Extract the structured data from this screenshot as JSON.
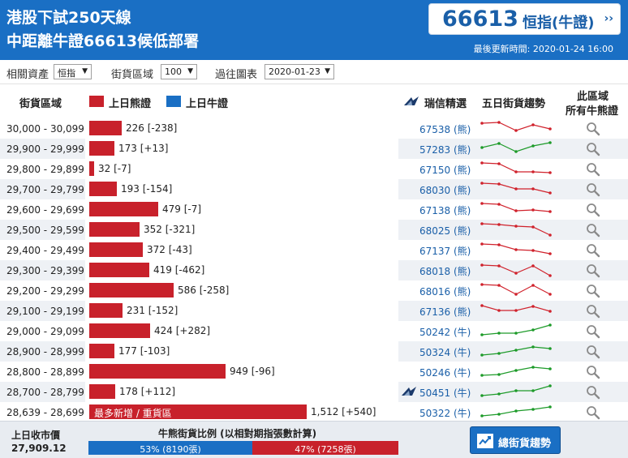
{
  "header": {
    "headline_line1": "港股下試250天線",
    "headline_line2": "中距離牛證66613候低部署",
    "code": "66613",
    "code_label": "恒指(牛證)",
    "arrow": "››",
    "update_time": "最後更新時間: 2020-01-24 16:00"
  },
  "filters": {
    "asset_label": "相關資產",
    "asset_value": "恒指",
    "zone_label": "街貨區域",
    "zone_value": "100",
    "chart_label": "過往圖表",
    "chart_value": "2020-01-23"
  },
  "columns": {
    "zone": "街貨區域",
    "bear_legend": "上日熊證",
    "bull_legend": "上日牛證",
    "picks": "瑞信精選",
    "trend": "五日街貨趨勢",
    "all_line1": "此區域",
    "all_line2": "所有牛熊證"
  },
  "colors": {
    "bear": "#c8212b",
    "bull": "#1a6fc4",
    "header_bg": "#1a6fc4",
    "trend_down": "#d0222c",
    "trend_up": "#1e9b2a"
  },
  "rows": [
    {
      "range": "30,000 - 30,099",
      "value": 226,
      "change": "[-238]",
      "label": "226 [-238]",
      "code": "67538 (熊)",
      "trend": "down",
      "spark": [
        6,
        5,
        15,
        8,
        13
      ],
      "logo": false
    },
    {
      "range": "29,900 - 29,999",
      "value": 173,
      "change": "[+13]",
      "label": "173 [+13]",
      "code": "57283 (熊)",
      "trend": "up",
      "spark": [
        11,
        6,
        16,
        9,
        5
      ],
      "logo": false
    },
    {
      "range": "29,800 - 29,899",
      "value": 32,
      "change": "[-7]",
      "label": "32 [-7]",
      "code": "67150 (熊)",
      "trend": "down",
      "spark": [
        5,
        6,
        16,
        16,
        17
      ],
      "logo": false
    },
    {
      "range": "29,700 - 29,799",
      "value": 193,
      "change": "[-154]",
      "label": "193 [-154]",
      "code": "68030 (熊)",
      "trend": "down",
      "spark": [
        5,
        6,
        12,
        12,
        17
      ],
      "logo": false
    },
    {
      "range": "29,600 - 29,699",
      "value": 479,
      "change": "[-7]",
      "label": "479 [-7]",
      "code": "67138 (熊)",
      "trend": "down",
      "spark": [
        5,
        6,
        14,
        13,
        15
      ],
      "logo": false
    },
    {
      "range": "29,500 - 29,599",
      "value": 352,
      "change": "[-321]",
      "label": "352 [-321]",
      "code": "68025 (熊)",
      "trend": "down",
      "spark": [
        5,
        6,
        8,
        9,
        19
      ],
      "logo": false
    },
    {
      "range": "29,400 - 29,499",
      "value": 372,
      "change": "[-43]",
      "label": "372 [-43]",
      "code": "67137 (熊)",
      "trend": "down",
      "spark": [
        5,
        6,
        12,
        13,
        17
      ],
      "logo": false
    },
    {
      "range": "29,300 - 29,399",
      "value": 419,
      "change": "[-462]",
      "label": "419 [-462]",
      "code": "68018 (熊)",
      "trend": "down",
      "spark": [
        6,
        7,
        16,
        7,
        19
      ],
      "logo": false
    },
    {
      "range": "29,200 - 29,299",
      "value": 586,
      "change": "[-258]",
      "label": "586 [-258]",
      "code": "68016 (熊)",
      "trend": "down",
      "spark": [
        5,
        6,
        17,
        6,
        17
      ],
      "logo": false
    },
    {
      "range": "29,100 - 29,199",
      "value": 231,
      "change": "[-152]",
      "label": "231 [-152]",
      "code": "67136 (熊)",
      "trend": "down",
      "spark": [
        6,
        12,
        12,
        7,
        13
      ],
      "logo": false
    },
    {
      "range": "29,000 - 29,099",
      "value": 424,
      "change": "[+282]",
      "label": "424 [+282]",
      "code": "50242 (牛)",
      "trend": "up",
      "spark": [
        17,
        15,
        15,
        11,
        5
      ],
      "logo": false
    },
    {
      "range": "28,900 - 28,999",
      "value": 177,
      "change": "[-103]",
      "label": "177 [-103]",
      "code": "50324 (牛)",
      "trend": "up",
      "spark": [
        17,
        15,
        11,
        7,
        9
      ],
      "logo": false
    },
    {
      "range": "28,800 - 28,899",
      "value": 949,
      "change": "[-96]",
      "label": "949 [-96]",
      "code": "50246 (牛)",
      "trend": "up",
      "spark": [
        17,
        16,
        11,
        7,
        9
      ],
      "logo": false
    },
    {
      "range": "28,700 - 28,799",
      "value": 178,
      "change": "[+112]",
      "label": "178 [+112]",
      "code": "50451 (牛)",
      "trend": "up",
      "spark": [
        17,
        15,
        11,
        11,
        5
      ],
      "logo": true
    },
    {
      "range": "28,639 - 28,699",
      "value": 1512,
      "change": "[+540]",
      "label": "1,512 [+540]",
      "code": "50322 (牛)",
      "trend": "up",
      "spark": [
        17,
        15,
        11,
        9,
        6
      ],
      "logo": false,
      "inside": "最多新增 / 重貨區"
    }
  ],
  "footer": {
    "close_label": "上日收市價",
    "close_value": "27,909.12",
    "ratio_title": "牛熊街貨比例 (以相對期指張數計算)",
    "bull_pct": 53,
    "bull_text": "53% (8190張)",
    "bear_pct": 47,
    "bear_text": "47% (7258張)",
    "trend_button": "總街貨趨勢"
  }
}
